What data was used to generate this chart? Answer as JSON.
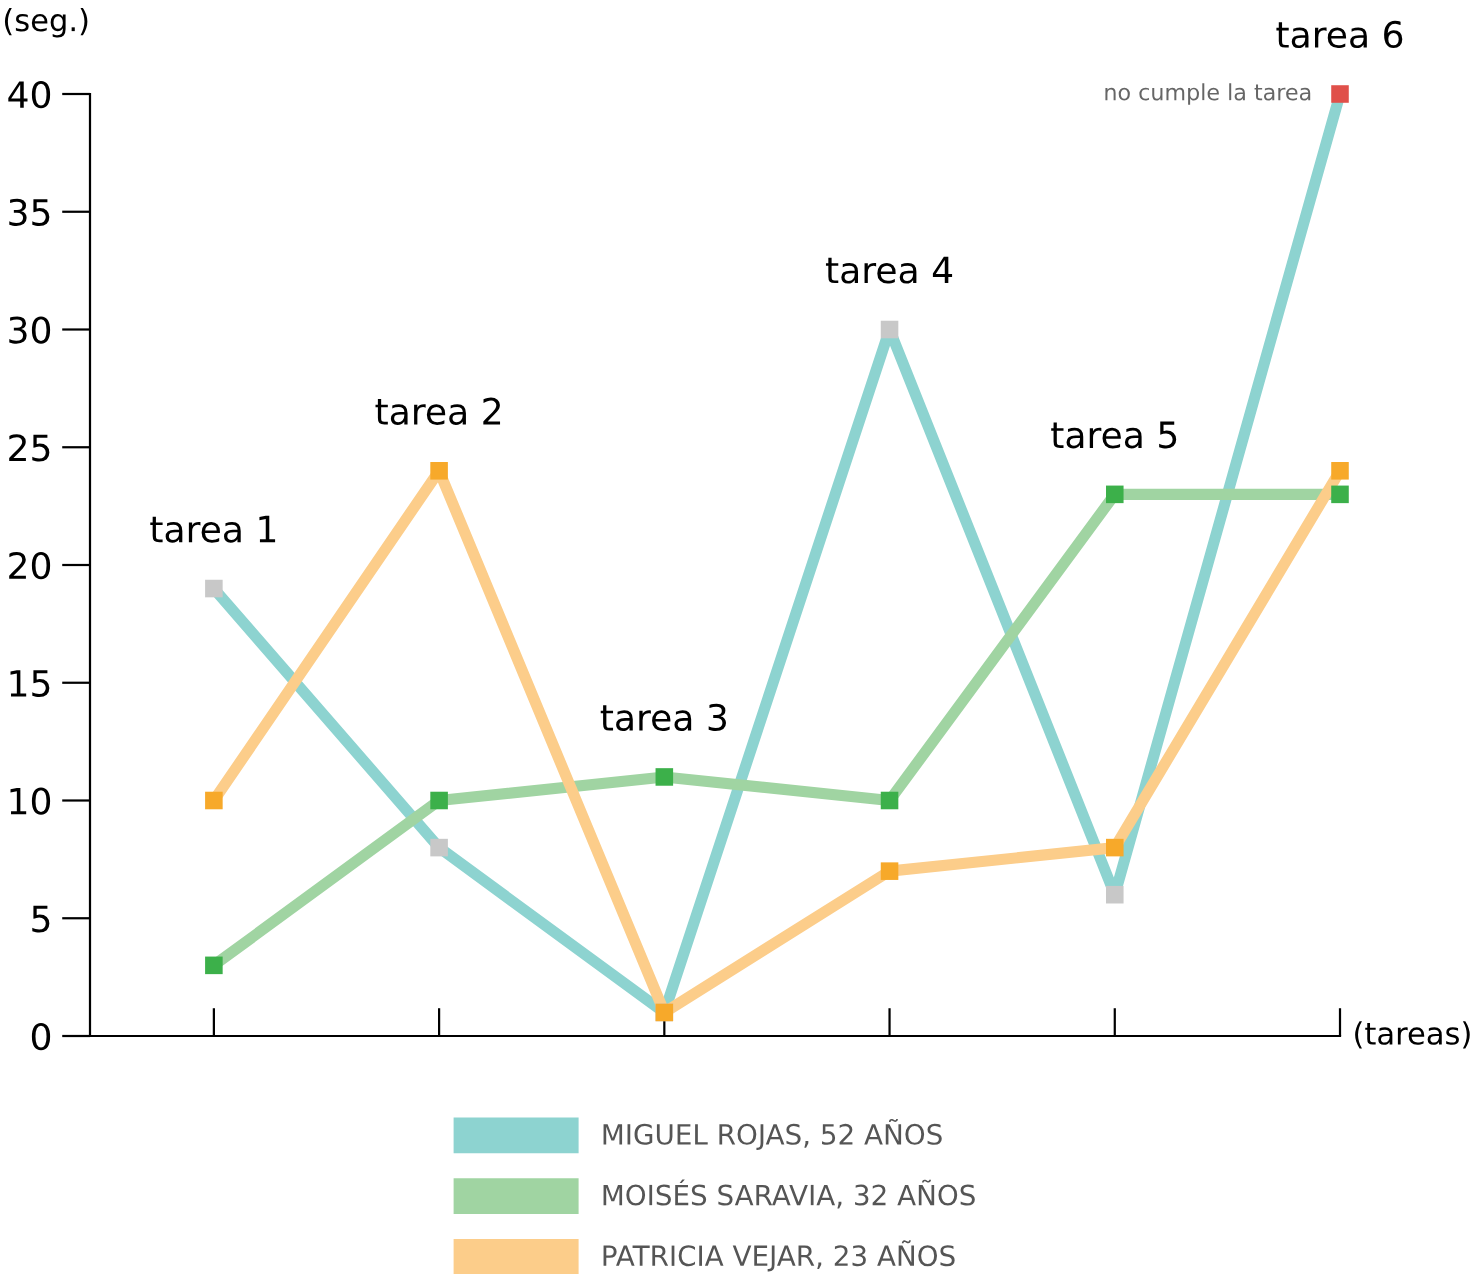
{
  "chart_data": {
    "type": "line",
    "xlabel": "(tareas)",
    "ylabel": "(seg.)",
    "categories": [
      "tarea 1",
      "tarea 2",
      "tarea 3",
      "tarea 4",
      "tarea 5",
      "tarea 6"
    ],
    "series": [
      {
        "name": "MIGUEL ROJAS, 52 AÑOS",
        "color": "#8dd3d0",
        "colors": [
          "#c8c8c8",
          "#c8c8c8",
          "#c8c8c8",
          "#c8c8c8",
          "#c8c8c8",
          "#e0504a"
        ],
        "values": [
          19,
          8,
          1,
          30,
          6,
          40
        ]
      },
      {
        "name": "MOISÉS SARAVIA, 32 AÑOS",
        "color": "#a0d4a2",
        "colors": [
          "#3cb04a",
          "#3cb04a",
          "#3cb04a",
          "#3cb04a",
          "#3cb04a",
          "#3cb04a"
        ],
        "values": [
          3,
          10,
          11,
          10,
          23,
          23
        ]
      },
      {
        "name": "PATRICIA VEJAR, 23 AÑOS",
        "color": "#fccd8a",
        "colors": [
          "#f7a92a",
          "#f7a92a",
          "#f7a92a",
          "#f7a92a",
          "#f7a92a",
          "#f7a92a"
        ],
        "values": [
          10,
          24,
          1,
          7,
          8,
          24
        ]
      }
    ],
    "ylim": [
      0,
      40
    ],
    "yticks": [
      0,
      5,
      10,
      15,
      20,
      25,
      30,
      35,
      40
    ],
    "marker": "square",
    "line_style": "solid",
    "grid": false,
    "legend": "bottom",
    "annotations": [
      {
        "text": "no cumple la tarea",
        "x": "tarea 6",
        "y": 40
      }
    ]
  }
}
